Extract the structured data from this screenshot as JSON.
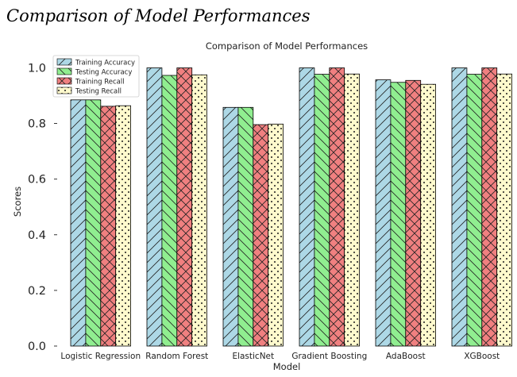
{
  "page": {
    "heading": "Comparison of Model Performances"
  },
  "chart_data": {
    "type": "bar",
    "title": "Comparison of Model Performances",
    "xlabel": "Model",
    "ylabel": "Scores",
    "ylim": [
      0,
      1.05
    ],
    "yticks": [
      0.0,
      0.2,
      0.4,
      0.6,
      0.8,
      1.0
    ],
    "ytick_labels": [
      "0.0",
      "0.2",
      "0.4",
      "0.6",
      "0.8",
      "1.0"
    ],
    "grid": false,
    "legend_position": "top-left",
    "categories": [
      "Logistic Regression",
      "Random Forest",
      "ElasticNet",
      "Gradient Boosting",
      "AdaBoost",
      "XGBoost"
    ],
    "series": [
      {
        "name": "Training Accuracy",
        "color": "#add8e6",
        "hatch": "forward-diagonal",
        "values": [
          0.885,
          1.0,
          0.858,
          1.0,
          0.957,
          1.0
        ]
      },
      {
        "name": "Testing Accuracy",
        "color": "#90ee90",
        "hatch": "back-diagonal",
        "values": [
          0.885,
          0.973,
          0.858,
          0.977,
          0.948,
          0.977
        ]
      },
      {
        "name": "Training Recall",
        "color": "#f08080",
        "hatch": "cross",
        "values": [
          0.862,
          1.0,
          0.796,
          1.0,
          0.955,
          1.0
        ]
      },
      {
        "name": "Testing Recall",
        "color": "#fffacd",
        "hatch": "dots",
        "values": [
          0.864,
          0.975,
          0.798,
          0.978,
          0.941,
          0.978
        ]
      }
    ]
  }
}
